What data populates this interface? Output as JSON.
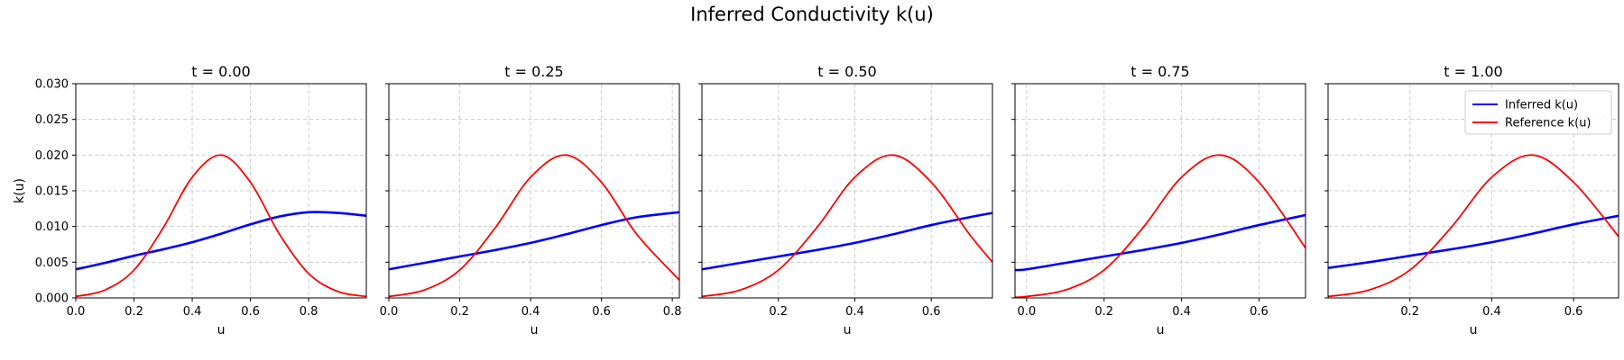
{
  "figure": {
    "title": "Inferred Conductivity k(u)"
  },
  "colors": {
    "inferred": "#0000ff",
    "reference": "#ff0000",
    "grid": "#cccccc",
    "axes": "#000000",
    "legend_border": "#cccccc"
  },
  "chart_data": [
    {
      "type": "line",
      "title": "t = 0.00",
      "xlabel": "u",
      "ylabel": "k(u)",
      "xlim": [
        0.0,
        0.998
      ],
      "ylim": [
        0.0,
        0.03
      ],
      "xticks": [
        "0.0",
        "0.2",
        "0.4",
        "0.6",
        "0.8"
      ],
      "yticks": [
        "0.000",
        "0.005",
        "0.010",
        "0.015",
        "0.020",
        "0.025",
        "0.030"
      ],
      "grid": true,
      "legend": null,
      "series": [
        {
          "name": "Inferred k(u)",
          "x": [
            0.0,
            0.1,
            0.2,
            0.3,
            0.4,
            0.5,
            0.6,
            0.7,
            0.8,
            0.9,
            0.998
          ],
          "y": [
            0.004,
            0.0049,
            0.0059,
            0.0068,
            0.0078,
            0.009,
            0.0103,
            0.0114,
            0.012,
            0.0119,
            0.0115
          ]
        },
        {
          "name": "Reference k(u)",
          "x": [
            0.0,
            0.1,
            0.2,
            0.3,
            0.4,
            0.5,
            0.6,
            0.7,
            0.8,
            0.9,
            0.998
          ],
          "y": [
            0.0002,
            0.0011,
            0.0039,
            0.0098,
            0.0169,
            0.02,
            0.0162,
            0.0089,
            0.0034,
            0.0009,
            0.0002
          ]
        }
      ]
    },
    {
      "type": "line",
      "title": "t = 0.25",
      "xlabel": "u",
      "ylabel": "",
      "xlim": [
        0.0,
        0.82
      ],
      "ylim": [
        0.0,
        0.03
      ],
      "xticks": [
        "0.0",
        "0.2",
        "0.4",
        "0.6",
        "0.8"
      ],
      "yticks": [],
      "grid": true,
      "legend": null,
      "series": [
        {
          "name": "Inferred k(u)",
          "x": [
            0.0,
            0.1,
            0.2,
            0.3,
            0.4,
            0.5,
            0.6,
            0.7,
            0.82
          ],
          "y": [
            0.004,
            0.0049,
            0.0058,
            0.0067,
            0.0077,
            0.0089,
            0.0102,
            0.0113,
            0.012
          ]
        },
        {
          "name": "Reference k(u)",
          "x": [
            0.0,
            0.1,
            0.2,
            0.3,
            0.4,
            0.5,
            0.6,
            0.7,
            0.82
          ],
          "y": [
            0.0002,
            0.0011,
            0.0039,
            0.0098,
            0.0169,
            0.02,
            0.0162,
            0.0089,
            0.0025
          ]
        }
      ]
    },
    {
      "type": "line",
      "title": "t = 0.50",
      "xlabel": "u",
      "ylabel": "",
      "xlim": [
        0.0,
        0.76
      ],
      "ylim": [
        0.0,
        0.03
      ],
      "xticks": [
        "0.2",
        "0.4",
        "0.6"
      ],
      "yticks": [],
      "grid": true,
      "legend": null,
      "series": [
        {
          "name": "Inferred k(u)",
          "x": [
            0.0,
            0.1,
            0.2,
            0.3,
            0.4,
            0.5,
            0.6,
            0.7,
            0.76
          ],
          "y": [
            0.004,
            0.0049,
            0.0058,
            0.0067,
            0.0077,
            0.0089,
            0.0102,
            0.0113,
            0.0119
          ]
        },
        {
          "name": "Reference k(u)",
          "x": [
            0.0,
            0.1,
            0.2,
            0.3,
            0.4,
            0.5,
            0.6,
            0.7,
            0.76
          ],
          "y": [
            0.0002,
            0.0011,
            0.0039,
            0.0098,
            0.0169,
            0.02,
            0.0162,
            0.0089,
            0.005
          ]
        }
      ]
    },
    {
      "type": "line",
      "title": "t = 0.75",
      "xlabel": "u",
      "ylabel": "",
      "xlim": [
        -0.03,
        0.72
      ],
      "ylim": [
        0.0,
        0.03
      ],
      "xticks": [
        "0.0",
        "0.2",
        "0.4",
        "0.6"
      ],
      "yticks": [],
      "grid": true,
      "legend": null,
      "series": [
        {
          "name": "Inferred k(u)",
          "x": [
            -0.03,
            0.0,
            0.1,
            0.2,
            0.3,
            0.4,
            0.5,
            0.6,
            0.72
          ],
          "y": [
            0.0039,
            0.004,
            0.0049,
            0.0058,
            0.0067,
            0.0077,
            0.0089,
            0.0102,
            0.0116
          ]
        },
        {
          "name": "Reference k(u)",
          "x": [
            -0.03,
            0.0,
            0.1,
            0.2,
            0.3,
            0.4,
            0.5,
            0.6,
            0.72
          ],
          "y": [
            0.0001,
            0.0002,
            0.0011,
            0.0039,
            0.0098,
            0.0169,
            0.02,
            0.0162,
            0.007
          ]
        }
      ]
    },
    {
      "type": "line",
      "title": "t = 1.00",
      "xlabel": "u",
      "ylabel": "",
      "xlim": [
        0.0,
        0.71
      ],
      "ylim": [
        0.0,
        0.03
      ],
      "xticks": [
        "0.2",
        "0.4",
        "0.6"
      ],
      "yticks": [],
      "grid": true,
      "legend": "upper right",
      "series": [
        {
          "name": "Inferred k(u)",
          "x": [
            0.0,
            0.1,
            0.2,
            0.3,
            0.4,
            0.5,
            0.6,
            0.71
          ],
          "y": [
            0.0042,
            0.005,
            0.0059,
            0.0068,
            0.0078,
            0.009,
            0.0103,
            0.0115
          ]
        },
        {
          "name": "Reference k(u)",
          "x": [
            0.0,
            0.1,
            0.2,
            0.3,
            0.4,
            0.5,
            0.6,
            0.71
          ],
          "y": [
            0.0002,
            0.0011,
            0.0039,
            0.0098,
            0.0169,
            0.02,
            0.0162,
            0.0086
          ]
        }
      ]
    }
  ]
}
